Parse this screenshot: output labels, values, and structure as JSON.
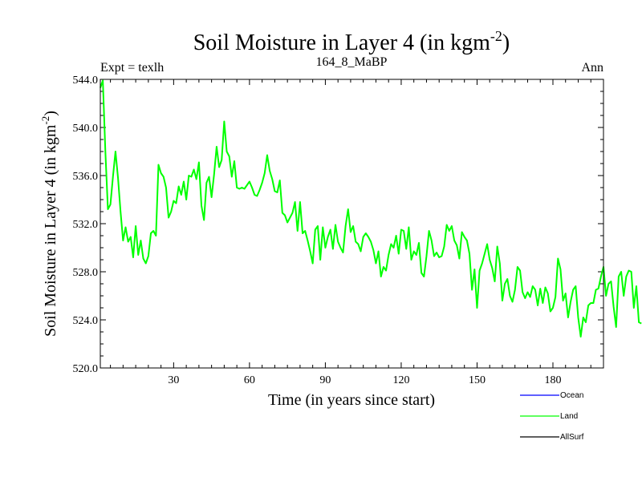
{
  "chart_data": {
    "type": "line",
    "title": "Soil Moisture in Layer 4 (in kgm",
    "title_sup": "-2",
    "title_close": ")",
    "subtitle_left": "Expt = texlh",
    "subtitle_center": "164_8_MaBP",
    "subtitle_right": "Ann",
    "xlabel": "Time (in years since start)",
    "ylabel": "Soil Moisture in Layer 4 (in kgm",
    "ylabel_sup": "-2",
    "ylabel_close": ")",
    "xlim": [
      1,
      200
    ],
    "ylim": [
      520,
      544
    ],
    "xticks": [
      30,
      60,
      90,
      120,
      150,
      180
    ],
    "xtick_labels": [
      "30",
      "60",
      "90",
      "120",
      "150",
      "180"
    ],
    "yticks": [
      520,
      524,
      528,
      532,
      536,
      540,
      544
    ],
    "ytick_labels": [
      "520.0",
      "524.0",
      "528.0",
      "532.0",
      "536.0",
      "540.0",
      "544.0"
    ],
    "legend": [
      {
        "name": "Ocean",
        "color": "#0000ff"
      },
      {
        "name": "Land",
        "color": "#00ff00"
      },
      {
        "name": "AllSurf",
        "color": "#000000"
      }
    ],
    "series": [
      {
        "name": "Land",
        "color": "#00ff00",
        "x_start": 1,
        "values": [
          543.3,
          543.9,
          538.0,
          533.2,
          533.6,
          535.9,
          538.0,
          535.8,
          533.0,
          530.6,
          531.7,
          530.5,
          530.9,
          529.2,
          531.8,
          529.4,
          530.6,
          529.1,
          528.7,
          529.3,
          531.2,
          531.4,
          531.0,
          536.9,
          536.2,
          535.9,
          535.0,
          532.5,
          533.0,
          533.9,
          533.7,
          535.1,
          534.4,
          535.5,
          534.0,
          536.0,
          535.9,
          536.5,
          535.7,
          537.1,
          533.5,
          532.3,
          535.4,
          535.9,
          534.2,
          536.1,
          538.4,
          536.7,
          537.3,
          540.5,
          538.0,
          537.6,
          535.9,
          537.2,
          535.0,
          534.9,
          535.0,
          534.9,
          535.2,
          535.5,
          535.0,
          534.4,
          534.3,
          534.8,
          535.4,
          536.2,
          537.7,
          536.4,
          535.7,
          534.7,
          534.6,
          535.6,
          532.9,
          532.7,
          532.1,
          532.5,
          532.9,
          533.8,
          531.4,
          533.8,
          531.2,
          531.4,
          530.6,
          529.7,
          528.7,
          531.5,
          531.8,
          529.0,
          531.7,
          530.0,
          530.9,
          531.5,
          529.9,
          531.9,
          530.5,
          530.0,
          529.6,
          531.8,
          533.2,
          531.3,
          531.8,
          530.5,
          530.3,
          529.7,
          530.9,
          531.2,
          530.9,
          530.5,
          529.8,
          528.7,
          529.7,
          527.6,
          528.4,
          528.1,
          529.4,
          530.3,
          530.0,
          531.0,
          529.5,
          531.5,
          531.4,
          529.9,
          531.7,
          529.0,
          529.7,
          529.4,
          530.4,
          527.9,
          527.6,
          529.3,
          531.4,
          530.6,
          529.3,
          529.6,
          529.2,
          529.3,
          530.1,
          531.9,
          531.4,
          531.8,
          530.6,
          530.2,
          529.1,
          531.3,
          530.9,
          530.6,
          529.5,
          526.5,
          528.2,
          525.0,
          528.1,
          528.7,
          529.5,
          530.3,
          529.0,
          528.3,
          527.2,
          530.1,
          528.7,
          525.6,
          527.0,
          527.4,
          526.0,
          525.5,
          526.5,
          528.4,
          528.1,
          526.3,
          525.8,
          526.3,
          525.9,
          526.8,
          526.5,
          525.2,
          526.6,
          525.4,
          526.7,
          526.2,
          524.7,
          525.0,
          525.9,
          529.1,
          528.2,
          525.6,
          526.2,
          524.2,
          525.5,
          526.5,
          526.8,
          524.2,
          522.6,
          524.2,
          523.8,
          525.2,
          525.4,
          525.4,
          526.5,
          526.6,
          527.6,
          528.4,
          526.0,
          527.0,
          527.2,
          525.1,
          523.4,
          527.6,
          528.0,
          526.0,
          527.6,
          528.1,
          528.0,
          525.0,
          526.8,
          523.8,
          523.7
        ]
      }
    ]
  }
}
